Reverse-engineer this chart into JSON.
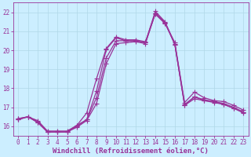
{
  "xlabel": "Windchill (Refroidissement éolien,°C)",
  "background_color": "#cceeff",
  "grid_color": "#b0d8e8",
  "line_color": "#993399",
  "xlim": [
    -0.5,
    23.5
  ],
  "ylim": [
    15.5,
    22.5
  ],
  "yticks": [
    16,
    17,
    18,
    19,
    20,
    21,
    22
  ],
  "xticks": [
    0,
    1,
    2,
    3,
    4,
    5,
    6,
    7,
    8,
    9,
    10,
    11,
    12,
    13,
    14,
    15,
    16,
    17,
    18,
    19,
    20,
    21,
    22,
    23
  ],
  "series": [
    [
      16.4,
      16.5,
      16.3,
      15.75,
      15.75,
      15.75,
      16.05,
      16.7,
      18.5,
      20.1,
      20.7,
      20.55,
      20.55,
      20.45,
      21.95,
      21.45,
      20.4,
      17.25,
      17.8,
      17.5,
      17.35,
      17.3,
      17.1,
      16.85
    ],
    [
      16.35,
      16.5,
      16.2,
      15.7,
      15.7,
      15.7,
      16.0,
      16.35,
      17.85,
      20.05,
      20.65,
      20.5,
      20.5,
      20.4,
      21.9,
      21.4,
      20.35,
      17.15,
      17.55,
      17.35,
      17.3,
      17.15,
      16.95,
      16.75
    ],
    [
      16.4,
      16.5,
      16.25,
      15.7,
      15.7,
      15.7,
      16.05,
      16.35,
      17.5,
      19.6,
      20.5,
      20.5,
      20.5,
      20.4,
      22.05,
      21.5,
      20.3,
      17.1,
      17.55,
      17.4,
      17.3,
      17.2,
      17.0,
      16.75
    ],
    [
      16.35,
      16.5,
      16.2,
      15.7,
      15.7,
      15.7,
      15.95,
      16.3,
      17.2,
      19.3,
      20.35,
      20.4,
      20.45,
      20.35,
      21.95,
      21.45,
      20.3,
      17.1,
      17.45,
      17.35,
      17.25,
      17.15,
      16.95,
      16.7
    ]
  ],
  "marker": "+",
  "markersize": 4,
  "linewidth": 0.9,
  "tick_fontsize": 5.5,
  "label_fontsize": 6.5,
  "figwidth": 3.2,
  "figheight": 2.0,
  "dpi": 100
}
